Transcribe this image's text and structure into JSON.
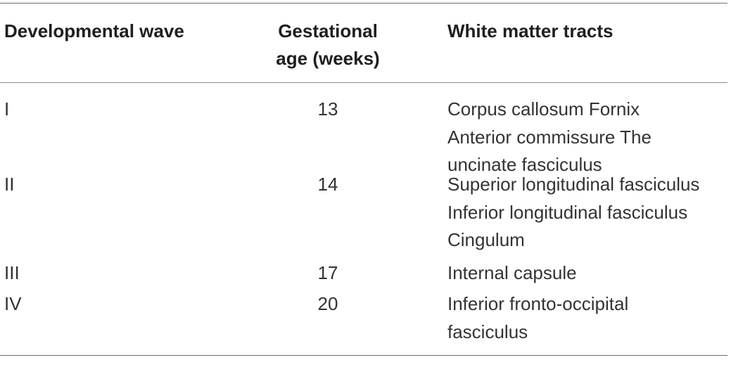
{
  "table": {
    "headers": {
      "developmental_wave": "Developmental wave",
      "gestational_age_line1": "Gestational",
      "gestational_age_line2": "age (weeks)",
      "white_matter_tracts": "White matter tracts"
    },
    "rows": [
      {
        "wave": "I",
        "age": "13",
        "tracts": [
          "Corpus callosum Fornix",
          "Anterior commissure The",
          "uncinate fasciculus"
        ]
      },
      {
        "wave": "II",
        "age": "14",
        "tracts": [
          "Superior longitudinal fasciculus",
          "Inferior longitudinal fasciculus",
          "Cingulum"
        ]
      },
      {
        "wave": "III",
        "age": "17",
        "tracts": [
          "Internal capsule"
        ]
      },
      {
        "wave": "IV",
        "age": "20",
        "tracts": [
          "Inferior fronto-occipital",
          "fasciculus"
        ]
      }
    ]
  }
}
